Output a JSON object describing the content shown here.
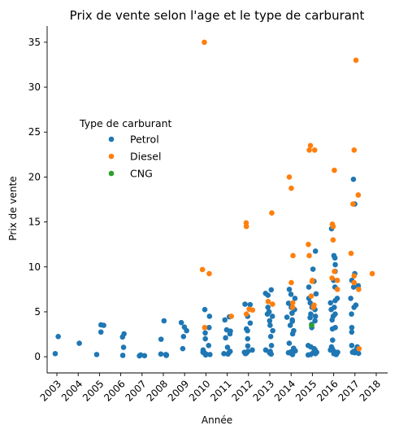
{
  "chart_data": {
    "type": "scatter",
    "title": "Prix de vente selon l'age et le type de carburant",
    "xlabel": "Année",
    "ylabel": "Prix de vente",
    "categories": [
      "2003",
      "2004",
      "2005",
      "2006",
      "2007",
      "2008",
      "2009",
      "2010",
      "2011",
      "2012",
      "2013",
      "2014",
      "2015",
      "2016",
      "2017",
      "2018"
    ],
    "ylim": [
      -1.8,
      36.8
    ],
    "yticks": [
      0,
      5,
      10,
      15,
      20,
      25,
      30,
      35
    ],
    "grid": false,
    "legend": {
      "title": "Type de carburant",
      "placement": "center-left",
      "entries": [
        "Petrol",
        "Diesel",
        "CNG"
      ]
    },
    "series": [
      {
        "name": "Petrol",
        "color": "#1f77b4",
        "points": [
          [
            "2003",
            2.25
          ],
          [
            "2003",
            0.35
          ],
          [
            "2004",
            1.5
          ],
          [
            "2005",
            3.5
          ],
          [
            "2005",
            3.55
          ],
          [
            "2005",
            2.75
          ],
          [
            "2005",
            0.25
          ],
          [
            "2006",
            2.55
          ],
          [
            "2006",
            2.2
          ],
          [
            "2006",
            1.05
          ],
          [
            "2006",
            0.15
          ],
          [
            "2007",
            0.2
          ],
          [
            "2007",
            0.12
          ],
          [
            "2007",
            0.1
          ],
          [
            "2008",
            4.0
          ],
          [
            "2008",
            1.95
          ],
          [
            "2008",
            0.3
          ],
          [
            "2008",
            0.25
          ],
          [
            "2008",
            0.2
          ],
          [
            "2008",
            0.15
          ],
          [
            "2009",
            3.8
          ],
          [
            "2009",
            3.3
          ],
          [
            "2009",
            2.9
          ],
          [
            "2009",
            2.25
          ],
          [
            "2009",
            0.9
          ],
          [
            "2010",
            5.25
          ],
          [
            "2010",
            4.5
          ],
          [
            "2010",
            3.25
          ],
          [
            "2010",
            2.65
          ],
          [
            "2010",
            2.0
          ],
          [
            "2010",
            1.25
          ],
          [
            "2010",
            0.75
          ],
          [
            "2010",
            0.5
          ],
          [
            "2010",
            0.45
          ],
          [
            "2010",
            0.35
          ],
          [
            "2010",
            0.3
          ],
          [
            "2010",
            0.25
          ],
          [
            "2010",
            0.2
          ],
          [
            "2011",
            4.45
          ],
          [
            "2011",
            4.1
          ],
          [
            "2011",
            3.0
          ],
          [
            "2011",
            2.85
          ],
          [
            "2011",
            2.55
          ],
          [
            "2011",
            2.1
          ],
          [
            "2011",
            1.05
          ],
          [
            "2011",
            0.6
          ],
          [
            "2011",
            0.45
          ],
          [
            "2011",
            0.35
          ],
          [
            "2011",
            0.3
          ],
          [
            "2012",
            5.85
          ],
          [
            "2012",
            5.8
          ],
          [
            "2012",
            4.5
          ],
          [
            "2012",
            3.75
          ],
          [
            "2012",
            3.1
          ],
          [
            "2012",
            2.9
          ],
          [
            "2012",
            2.0
          ],
          [
            "2012",
            1.2
          ],
          [
            "2012",
            0.75
          ],
          [
            "2012",
            0.6
          ],
          [
            "2012",
            0.5
          ],
          [
            "2012",
            0.4
          ],
          [
            "2012",
            0.35
          ],
          [
            "2013",
            7.45
          ],
          [
            "2013",
            7.05
          ],
          [
            "2013",
            6.85
          ],
          [
            "2013",
            5.5
          ],
          [
            "2013",
            5.0
          ],
          [
            "2013",
            4.75
          ],
          [
            "2013",
            4.5
          ],
          [
            "2013",
            4.0
          ],
          [
            "2013",
            3.5
          ],
          [
            "2013",
            2.9
          ],
          [
            "2013",
            2.25
          ],
          [
            "2013",
            1.25
          ],
          [
            "2013",
            0.75
          ],
          [
            "2013",
            0.6
          ],
          [
            "2013",
            0.5
          ],
          [
            "2013",
            0.4
          ],
          [
            "2013",
            0.3
          ],
          [
            "2014",
            7.5
          ],
          [
            "2014",
            6.95
          ],
          [
            "2014",
            6.5
          ],
          [
            "2014",
            5.95
          ],
          [
            "2014",
            5.5
          ],
          [
            "2014",
            5.25
          ],
          [
            "2014",
            4.85
          ],
          [
            "2014",
            4.4
          ],
          [
            "2014",
            4.1
          ],
          [
            "2014",
            3.95
          ],
          [
            "2014",
            3.5
          ],
          [
            "2014",
            2.9
          ],
          [
            "2014",
            2.55
          ],
          [
            "2014",
            1.5
          ],
          [
            "2014",
            0.95
          ],
          [
            "2014",
            0.65
          ],
          [
            "2014",
            0.55
          ],
          [
            "2014",
            0.45
          ],
          [
            "2014",
            0.35
          ],
          [
            "2014",
            0.25
          ],
          [
            "2015",
            11.75
          ],
          [
            "2015",
            9.75
          ],
          [
            "2015",
            8.4
          ],
          [
            "2015",
            7.75
          ],
          [
            "2015",
            7.0
          ],
          [
            "2015",
            6.5
          ],
          [
            "2015",
            6.0
          ],
          [
            "2015",
            5.5
          ],
          [
            "2015",
            5.25
          ],
          [
            "2015",
            4.75
          ],
          [
            "2015",
            4.5
          ],
          [
            "2015",
            4.35
          ],
          [
            "2015",
            4.0
          ],
          [
            "2015",
            3.6
          ],
          [
            "2015",
            3.25
          ],
          [
            "2015",
            1.25
          ],
          [
            "2015",
            1.1
          ],
          [
            "2015",
            0.9
          ],
          [
            "2015",
            0.75
          ],
          [
            "2015",
            0.6
          ],
          [
            "2015",
            0.5
          ],
          [
            "2015",
            0.45
          ],
          [
            "2015",
            0.35
          ],
          [
            "2015",
            0.25
          ],
          [
            "2015",
            0.2
          ],
          [
            "2016",
            14.25
          ],
          [
            "2016",
            11.25
          ],
          [
            "2016",
            11.0
          ],
          [
            "2016",
            10.25
          ],
          [
            "2016",
            9.5
          ],
          [
            "2016",
            8.5
          ],
          [
            "2016",
            7.75
          ],
          [
            "2016",
            6.5
          ],
          [
            "2016",
            6.25
          ],
          [
            "2016",
            6.0
          ],
          [
            "2016",
            5.5
          ],
          [
            "2016",
            5.25
          ],
          [
            "2016",
            4.75
          ],
          [
            "2016",
            4.5
          ],
          [
            "2016",
            4.1
          ],
          [
            "2016",
            3.25
          ],
          [
            "2016",
            3.1
          ],
          [
            "2016",
            1.85
          ],
          [
            "2016",
            1.1
          ],
          [
            "2016",
            0.9
          ],
          [
            "2016",
            0.75
          ],
          [
            "2016",
            0.6
          ],
          [
            "2016",
            0.5
          ],
          [
            "2016",
            0.42
          ],
          [
            "2016",
            0.35
          ],
          [
            "2016",
            0.3
          ],
          [
            "2016",
            0.25
          ],
          [
            "2017",
            19.75
          ],
          [
            "2017",
            17.0
          ],
          [
            "2017",
            9.25
          ],
          [
            "2017",
            8.5
          ],
          [
            "2017",
            7.9
          ],
          [
            "2017",
            7.75
          ],
          [
            "2017",
            6.5
          ],
          [
            "2017",
            5.75
          ],
          [
            "2017",
            5.5
          ],
          [
            "2017",
            4.75
          ],
          [
            "2017",
            3.25
          ],
          [
            "2017",
            2.75
          ],
          [
            "2017",
            1.25
          ],
          [
            "2017",
            1.1
          ],
          [
            "2017",
            0.9
          ],
          [
            "2017",
            0.75
          ],
          [
            "2017",
            0.6
          ],
          [
            "2017",
            0.5
          ],
          [
            "2017",
            0.45
          ],
          [
            "2017",
            0.38
          ]
        ]
      },
      {
        "name": "Diesel",
        "color": "#ff7f0e",
        "points": [
          [
            "2010",
            35.0
          ],
          [
            "2010",
            9.7
          ],
          [
            "2010",
            9.25
          ],
          [
            "2010",
            3.25
          ],
          [
            "2011",
            4.5
          ],
          [
            "2012",
            14.9
          ],
          [
            "2012",
            14.5
          ],
          [
            "2012",
            5.3
          ],
          [
            "2012",
            5.2
          ],
          [
            "2012",
            4.75
          ],
          [
            "2013",
            16.0
          ],
          [
            "2013",
            6.15
          ],
          [
            "2013",
            5.85
          ],
          [
            "2014",
            20.0
          ],
          [
            "2014",
            18.75
          ],
          [
            "2014",
            11.25
          ],
          [
            "2014",
            8.25
          ],
          [
            "2014",
            6.0
          ],
          [
            "2014",
            5.5
          ],
          [
            "2015",
            23.5
          ],
          [
            "2015",
            23.0
          ],
          [
            "2015",
            23.0
          ],
          [
            "2015",
            12.5
          ],
          [
            "2015",
            11.25
          ],
          [
            "2015",
            8.5
          ],
          [
            "2015",
            8.4
          ],
          [
            "2015",
            6.75
          ],
          [
            "2015",
            5.75
          ],
          [
            "2015",
            5.5
          ],
          [
            "2016",
            20.75
          ],
          [
            "2016",
            14.75
          ],
          [
            "2016",
            14.5
          ],
          [
            "2016",
            13.0
          ],
          [
            "2016",
            9.5
          ],
          [
            "2016",
            8.75
          ],
          [
            "2016",
            8.5
          ],
          [
            "2016",
            7.5
          ],
          [
            "2017",
            33.0
          ],
          [
            "2017",
            23.0
          ],
          [
            "2017",
            18.0
          ],
          [
            "2017",
            17.0
          ],
          [
            "2017",
            11.5
          ],
          [
            "2017",
            9.0
          ],
          [
            "2017",
            8.25
          ],
          [
            "2017",
            7.5
          ],
          [
            "2017",
            0.9
          ],
          [
            "2018",
            9.25
          ]
        ]
      },
      {
        "name": "CNG",
        "color": "#2ca02c",
        "points": [
          [
            "2015",
            3.5
          ]
        ]
      }
    ]
  }
}
